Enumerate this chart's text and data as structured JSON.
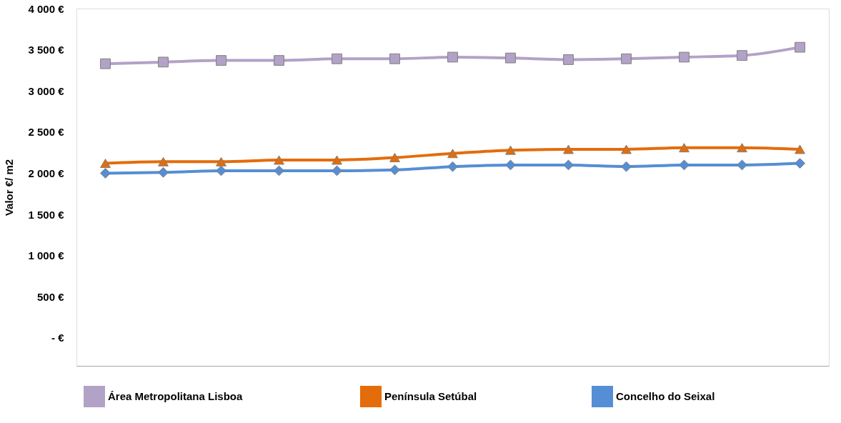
{
  "chart_data": {
    "type": "line",
    "ylabel": "Valor €/ m2",
    "categories": [
      null,
      null,
      null,
      null,
      null,
      null,
      null,
      null,
      null,
      null,
      null,
      null,
      null
    ],
    "ylim": [
      -340,
      4000
    ],
    "yticks": [
      {
        "value": 0,
        "label": "-  €"
      },
      {
        "value": 500,
        "label": "500 €"
      },
      {
        "value": 1000,
        "label": "1 000 €"
      },
      {
        "value": 1500,
        "label": "1 500 €"
      },
      {
        "value": 2000,
        "label": "2 000 €"
      },
      {
        "value": 2500,
        "label": "2 500 €"
      },
      {
        "value": 3000,
        "label": "3 000 €"
      },
      {
        "value": 3500,
        "label": "3 500 €"
      },
      {
        "value": 4000,
        "label": "4 000 €"
      }
    ],
    "grid": false,
    "legend": "bottom",
    "tick_labels": "y",
    "series": [
      {
        "name": "Área Metropolitana  Lisboa",
        "color": "#b3a2c7",
        "marker": "square",
        "values": [
          3330,
          3350,
          3370,
          3370,
          3390,
          3390,
          3410,
          3400,
          3380,
          3390,
          3410,
          3430,
          3530
        ]
      },
      {
        "name": "Península Setúbal",
        "color": "#e46c0a",
        "marker": "triangle",
        "values": [
          2120,
          2140,
          2140,
          2160,
          2160,
          2190,
          2240,
          2280,
          2290,
          2290,
          2310,
          2310,
          2290
        ]
      },
      {
        "name": "Concelho do Seixal",
        "color": "#558ed5",
        "marker": "diamond",
        "values": [
          2000,
          2010,
          2030,
          2030,
          2030,
          2040,
          2080,
          2100,
          2100,
          2080,
          2100,
          2100,
          2120
        ]
      }
    ]
  }
}
